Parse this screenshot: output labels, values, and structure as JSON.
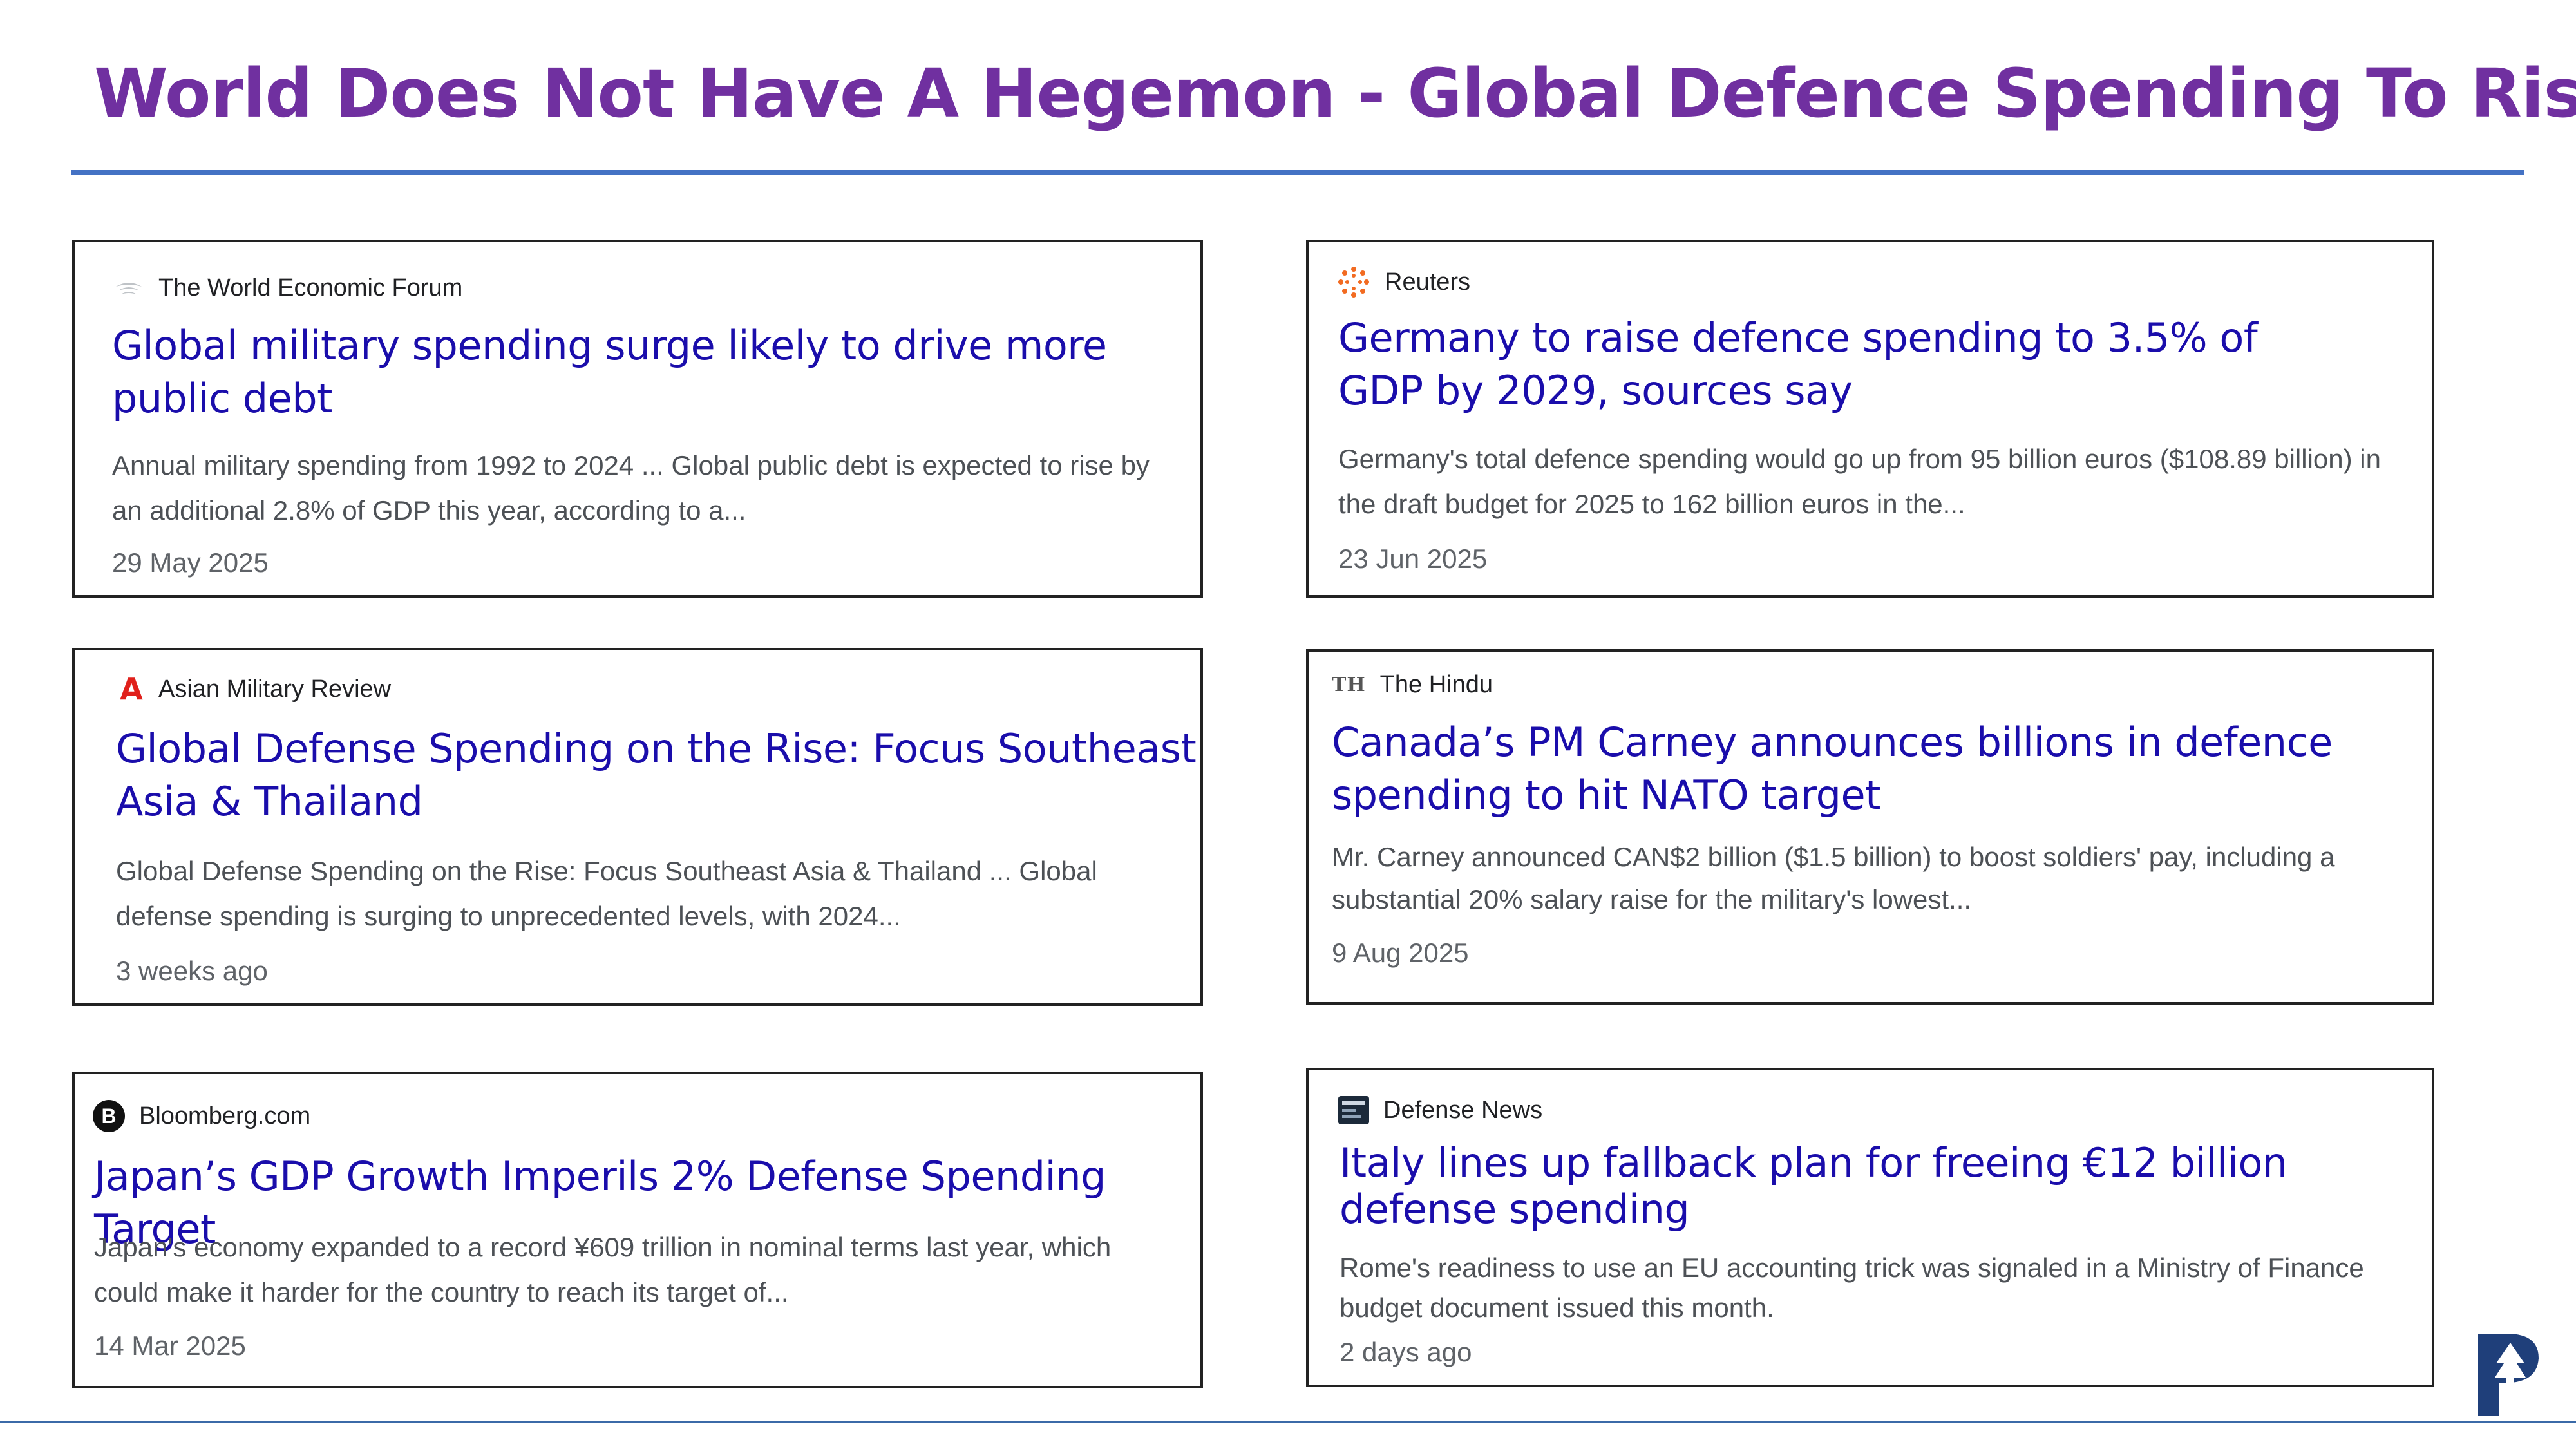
{
  "slide": {
    "title": "World Does Not Have A Hegemon - Global Defence Spending To Rise"
  },
  "colors": {
    "title": "#7030a0",
    "rule": "#4472c4",
    "headline": "#1a0dab",
    "snippet": "#4d5156"
  },
  "cards": [
    {
      "source": "The World Economic Forum",
      "icon": "wef-icon",
      "headline": "Global military spending surge likely to drive more public debt",
      "snippet": "Annual military spending from 1992 to 2024 ... Global public debt is expected to rise by an additional 2.8% of GDP this year, according to a...",
      "date": "29 May 2025"
    },
    {
      "source": "Reuters",
      "icon": "reuters-icon",
      "headline": "Germany to raise defence spending to 3.5% of GDP by 2029, sources say",
      "snippet": "Germany's total defence spending would go up from 95 billion euros ($108.89 billion) in the draft budget for 2025 to 162 billion euros in the...",
      "date": "23 Jun 2025"
    },
    {
      "source": "Asian Military Review",
      "icon": "asian-military-review-icon",
      "headline": "Global Defense Spending on the Rise: Focus Southeast Asia & Thailand",
      "snippet": "Global Defense Spending on the Rise: Focus Southeast Asia & Thailand ... Global defense spending is surging to unprecedented levels, with 2024...",
      "date": "3 weeks ago"
    },
    {
      "source": "The Hindu",
      "icon": "the-hindu-icon",
      "headline": "Canada’s PM Carney announces billions in defence spending to hit NATO target",
      "snippet": "Mr. Carney announced CAN$2 billion ($1.5 billion) to boost soldiers' pay, including a substantial 20% salary raise for the military's lowest...",
      "date": "9 Aug 2025"
    },
    {
      "source": "Bloomberg.com",
      "icon": "bloomberg-icon",
      "headline": "Japan’s GDP Growth Imperils 2% Defense Spending Target",
      "snippet": "Japan's economy expanded to a record ¥609 trillion in nominal terms last year, which could make it harder for the country to reach its target of...",
      "date": "14 Mar 2025"
    },
    {
      "source": "Defense News",
      "icon": "defense-news-icon",
      "headline": "Italy lines up fallback plan for freeing €12 billion defense spending",
      "snippet": "Rome's readiness to use an EU accounting trick was signaled in a Ministry of Finance budget document issued this month.",
      "date": "2 days ago"
    }
  ],
  "icons": {
    "the_hindu_mark": "TH",
    "bloomberg_mark": "B",
    "asian_military_review_mark": "A"
  }
}
